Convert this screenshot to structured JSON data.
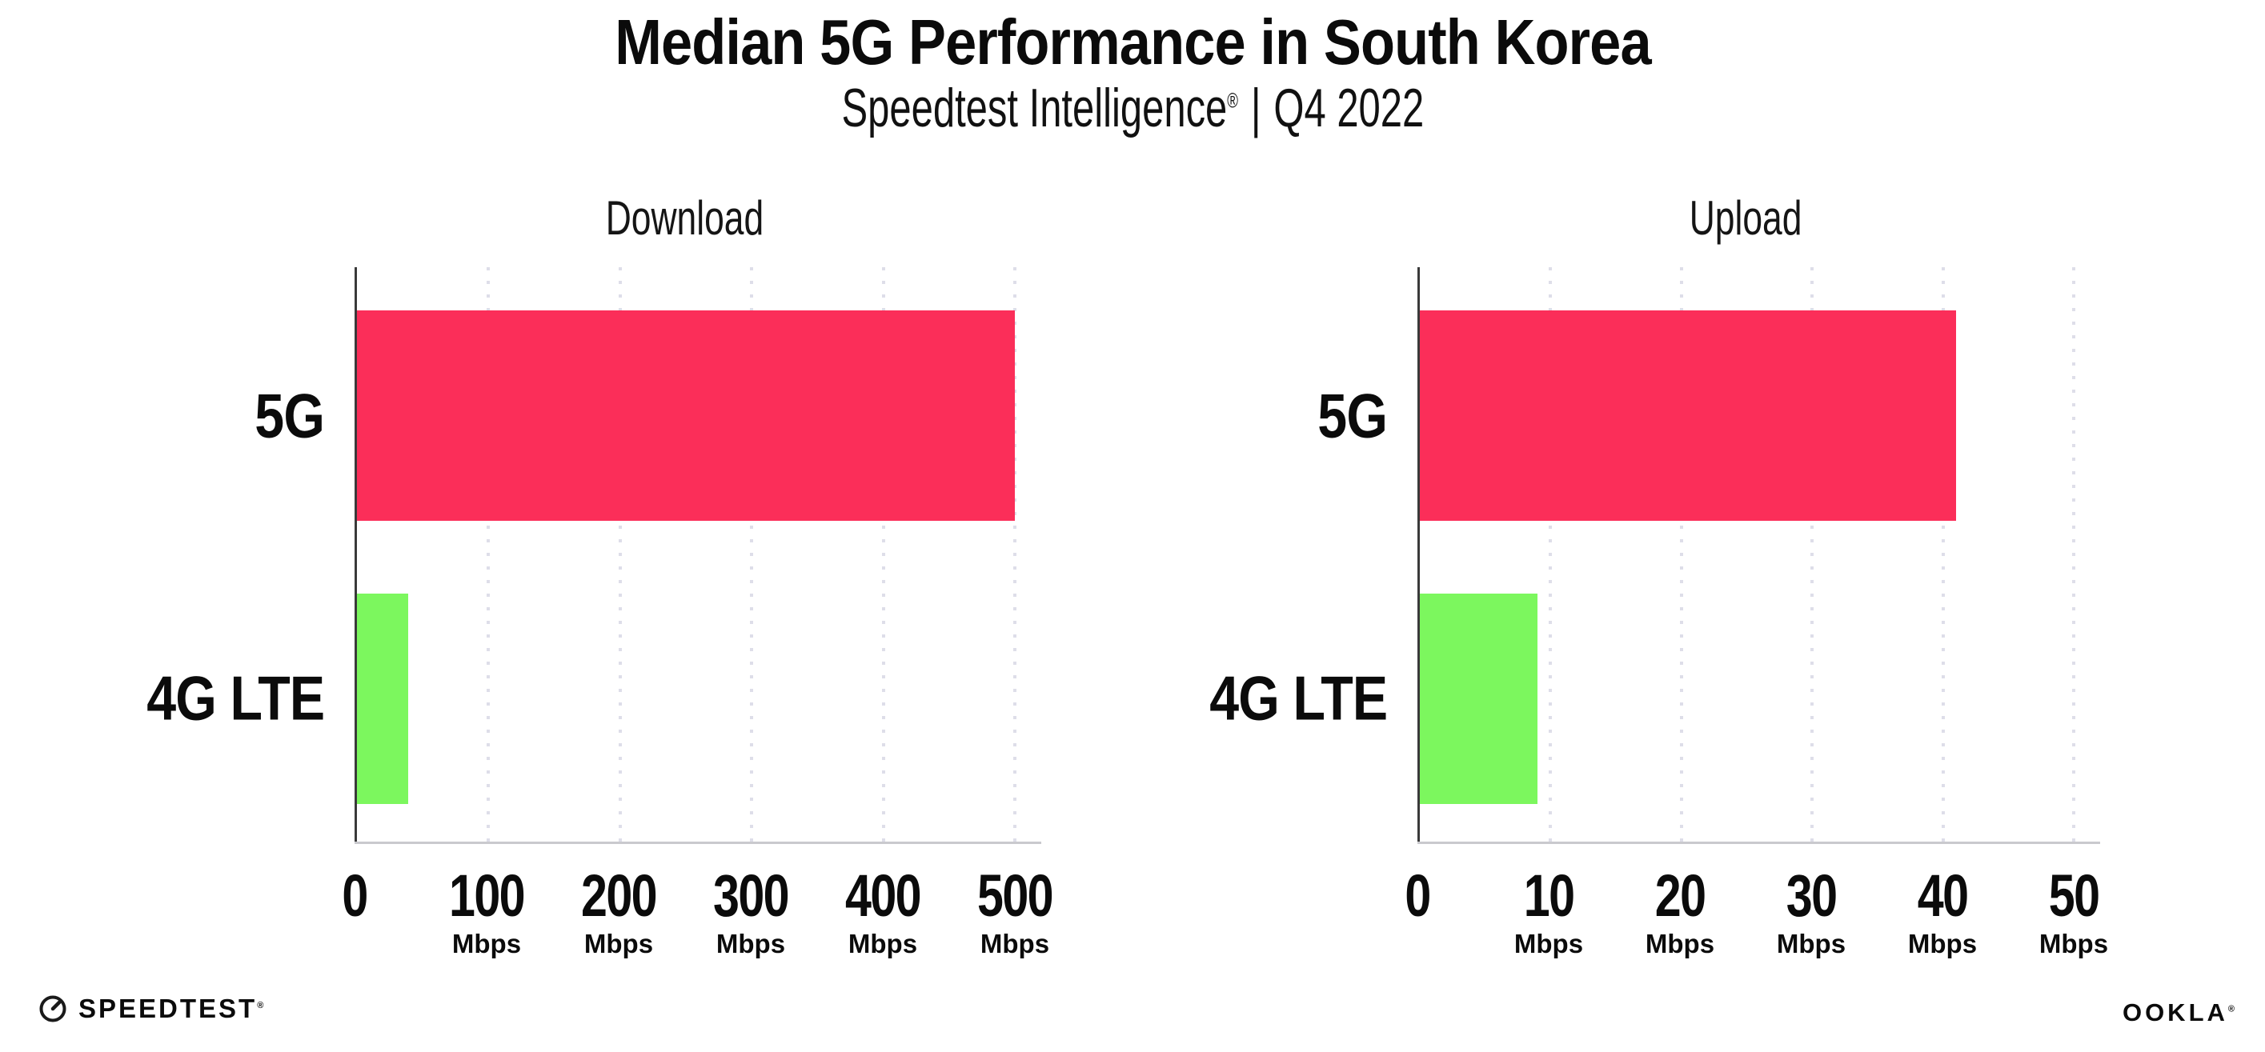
{
  "header": {
    "title": "Median 5G Performance in South Korea",
    "subtitle": {
      "brand": "Speedtest Intelligence",
      "registered": "®",
      "divider": "|",
      "period": "Q4 2022"
    }
  },
  "chart_data": [
    {
      "type": "bar",
      "orientation": "horizontal",
      "title": "Download",
      "categories": [
        "5G",
        "4G LTE"
      ],
      "values": [
        500,
        39
      ],
      "unit": "Mbps",
      "tick_unit": "Mbps",
      "xticks": [
        0,
        100,
        200,
        300,
        400,
        500
      ],
      "xlim": [
        0,
        500
      ],
      "xlabel": "",
      "ylabel": "",
      "bar_colors": [
        "#FB2E59",
        "#7CF75E"
      ],
      "grid": "vertical-dotted",
      "legend_position": "none"
    },
    {
      "type": "bar",
      "orientation": "horizontal",
      "title": "Upload",
      "categories": [
        "5G",
        "4G LTE"
      ],
      "values": [
        41,
        9
      ],
      "unit": "Mbps",
      "tick_unit": "Mbps",
      "xticks": [
        0,
        10,
        20,
        30,
        40,
        50
      ],
      "xlim": [
        0,
        50
      ],
      "xlabel": "",
      "ylabel": "",
      "bar_colors": [
        "#FB2E59",
        "#7CF75E"
      ],
      "grid": "vertical-dotted",
      "legend_position": "none"
    }
  ],
  "footer": {
    "speedtest": "SPEEDTEST",
    "speedtest_mark": "®",
    "ookla": "OOKLA",
    "ookla_mark": "®"
  },
  "colors": {
    "bar_5g": "#FB2E59",
    "bar_4g_lte": "#7CF75E",
    "gridline": "#DEDEE9",
    "axis_y": "#3A3A3A",
    "axis_x": "#C9C9CE",
    "text": "#0B0B0B",
    "background": "#FFFFFF"
  }
}
